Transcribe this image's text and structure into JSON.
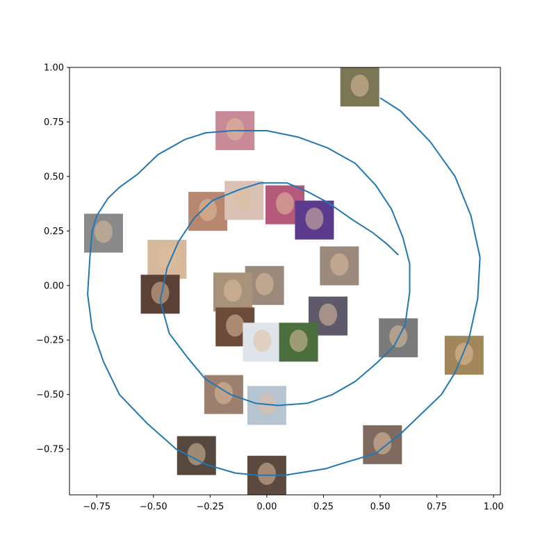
{
  "chart_data": {
    "type": "line",
    "title": "",
    "xlabel": "",
    "ylabel": "",
    "xlim": [
      -0.87,
      1.03
    ],
    "ylim": [
      -0.96,
      1.0
    ],
    "grid": false,
    "xticks": [
      -0.75,
      -0.5,
      -0.25,
      0.0,
      0.25,
      0.5,
      0.75,
      1.0
    ],
    "xtick_labels": [
      "−0.75",
      "−0.50",
      "−0.25",
      "0.00",
      "0.25",
      "0.50",
      "0.75",
      "1.00"
    ],
    "yticks": [
      -0.75,
      -0.5,
      -0.25,
      0.0,
      0.25,
      0.5,
      0.75,
      1.0
    ],
    "ytick_labels": [
      "−0.75",
      "−0.50",
      "−0.25",
      "0.00",
      "0.25",
      "0.50",
      "0.75",
      "1.00"
    ],
    "line_color": "#1f77b4",
    "series": [
      {
        "x": [
          0.5,
          0.59,
          0.72,
          0.83,
          0.9,
          0.94,
          0.93,
          0.89,
          0.83,
          0.77,
          0.71,
          0.59,
          0.48,
          0.32,
          0.26,
          0.08,
          0.02,
          -0.04,
          -0.14,
          -0.27,
          -0.4,
          -0.53,
          -0.65,
          -0.72,
          -0.77,
          -0.79,
          -0.78,
          -0.77,
          -0.75,
          -0.7,
          -0.65,
          -0.57,
          -0.48,
          -0.36,
          -0.27,
          -0.15,
          0.0,
          0.14,
          0.27,
          0.39,
          0.48,
          0.55,
          0.6,
          0.63,
          0.63,
          0.61,
          0.56,
          0.48,
          0.39,
          0.29,
          0.18,
          0.05,
          -0.05,
          -0.16,
          -0.27,
          -0.35,
          -0.43,
          -0.47,
          -0.44,
          -0.39,
          -0.32,
          -0.24,
          -0.12,
          -0.03,
          0.09,
          0.18,
          0.27,
          0.38,
          0.47,
          0.53,
          0.58
        ],
        "y": [
          0.86,
          0.8,
          0.66,
          0.5,
          0.32,
          0.13,
          -0.06,
          -0.25,
          -0.4,
          -0.5,
          -0.56,
          -0.68,
          -0.77,
          -0.82,
          -0.84,
          -0.87,
          -0.87,
          -0.87,
          -0.86,
          -0.82,
          -0.75,
          -0.63,
          -0.5,
          -0.35,
          -0.2,
          -0.04,
          0.13,
          0.25,
          0.32,
          0.4,
          0.45,
          0.51,
          0.6,
          0.67,
          0.7,
          0.71,
          0.71,
          0.68,
          0.63,
          0.56,
          0.46,
          0.35,
          0.22,
          0.1,
          -0.03,
          -0.18,
          -0.28,
          -0.36,
          -0.44,
          -0.5,
          -0.54,
          -0.55,
          -0.54,
          -0.5,
          -0.43,
          -0.33,
          -0.22,
          -0.07,
          0.08,
          0.2,
          0.31,
          0.39,
          0.44,
          0.47,
          0.47,
          0.43,
          0.38,
          0.3,
          0.24,
          0.19,
          0.14
        ]
      }
    ],
    "thumbnails": [
      {
        "name": "face-top-right",
        "x": 0.41,
        "y": 0.91,
        "fill": "#7b7654"
      },
      {
        "name": "face-blonde-pink",
        "x": -0.14,
        "y": 0.71,
        "fill": "#c88a96"
      },
      {
        "name": "face-camera",
        "x": -0.72,
        "y": 0.24,
        "fill": "#8a8a8a"
      },
      {
        "name": "face-woman-smile",
        "x": -0.26,
        "y": 0.34,
        "fill": "#b7876f"
      },
      {
        "name": "face-woman-surprised",
        "x": -0.1,
        "y": 0.39,
        "fill": "#d9c1b3"
      },
      {
        "name": "face-woman-pink",
        "x": 0.08,
        "y": 0.37,
        "fill": "#b5597a"
      },
      {
        "name": "face-baby-hat",
        "x": 0.21,
        "y": 0.3,
        "fill": "#5a3b8e"
      },
      {
        "name": "face-boy",
        "x": -0.44,
        "y": 0.12,
        "fill": "#d6b89a"
      },
      {
        "name": "face-woman-tiara",
        "x": -0.01,
        "y": 0.0,
        "fill": "#9b8a7c"
      },
      {
        "name": "face-man-smile",
        "x": 0.32,
        "y": 0.09,
        "fill": "#9c8a7d"
      },
      {
        "name": "face-girl-hair",
        "x": -0.47,
        "y": -0.04,
        "fill": "#5b4037"
      },
      {
        "name": "face-woman-center",
        "x": -0.15,
        "y": -0.03,
        "fill": "#a9927a"
      },
      {
        "name": "face-bald-man",
        "x": 0.27,
        "y": -0.14,
        "fill": "#5f5a6b"
      },
      {
        "name": "face-girl-curly",
        "x": -0.14,
        "y": -0.19,
        "fill": "#6c4b3a"
      },
      {
        "name": "face-baby-lying",
        "x": -0.02,
        "y": -0.26,
        "fill": "#dfe5ea"
      },
      {
        "name": "face-girl-outdoor",
        "x": 0.14,
        "y": -0.26,
        "fill": "#4a6f3c"
      },
      {
        "name": "face-child-bw",
        "x": 0.58,
        "y": -0.24,
        "fill": "#7a7a7a"
      },
      {
        "name": "face-man-headband",
        "x": 0.87,
        "y": -0.32,
        "fill": "#a2875c"
      },
      {
        "name": "face-old-man",
        "x": -0.19,
        "y": -0.5,
        "fill": "#9c7f6e"
      },
      {
        "name": "face-woman-bangs",
        "x": 0.0,
        "y": -0.55,
        "fill": "#b6c4d2"
      },
      {
        "name": "face-woman-blonde-braids",
        "x": 0.51,
        "y": -0.73,
        "fill": "#7f6a5f"
      },
      {
        "name": "face-man-headset",
        "x": -0.31,
        "y": -0.78,
        "fill": "#55493f"
      },
      {
        "name": "face-bald-man-bottom",
        "x": 0.0,
        "y": -0.87,
        "fill": "#5c4a41"
      }
    ]
  }
}
